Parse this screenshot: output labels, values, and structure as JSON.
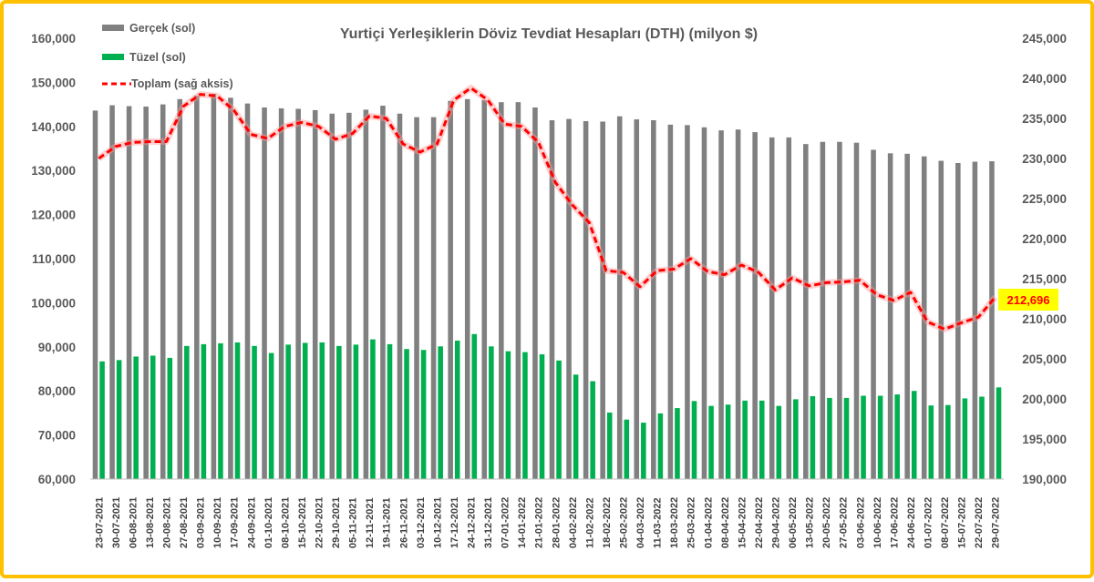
{
  "chart_data": {
    "type": "bar",
    "title": "Yurtiçi Yerleşiklerin Döviz Tevdiat Hesapları (DTH) (milyon $)",
    "categories": [
      "23-07-2021",
      "30-07-2021",
      "06-08-2021",
      "13-08-2021",
      "20-08-2021",
      "27-08-2021",
      "03-09-2021",
      "10-09-2021",
      "17-09-2021",
      "24-09-2021",
      "01-10-2021",
      "08-10-2021",
      "15-10-2021",
      "22-10-2021",
      "29-10-2021",
      "05-11-2021",
      "12-11-2021",
      "19-11-2021",
      "26-11-2021",
      "03-12-2021",
      "10-12-2021",
      "17-12-2021",
      "24-12-2021",
      "31-12-2021",
      "07-01-2022",
      "14-01-2022",
      "21-01-2022",
      "28-01-2022",
      "04-02-2022",
      "11-02-2022",
      "18-02-2022",
      "25-02-2022",
      "04-03-2022",
      "11-03-2022",
      "18-03-2022",
      "25-03-2022",
      "01-04-2022",
      "08-04-2022",
      "15-04-2022",
      "22-04-2022",
      "29-04-2022",
      "06-05-2022",
      "13-05-2022",
      "20-05-2022",
      "27-05-2022",
      "03-06-2022",
      "10-06-2022",
      "17-06-2022",
      "24-06-2022",
      "01-07-2022",
      "08-07-2022",
      "15-07-2022",
      "22-07-2022",
      "29-07-2022"
    ],
    "series": [
      {
        "name": "Gerçek (sol)",
        "axis": "left",
        "color": "#808080",
        "values": [
          143600,
          144800,
          144600,
          144500,
          145000,
          146200,
          147000,
          147400,
          146500,
          145200,
          144300,
          144100,
          144000,
          143700,
          142900,
          143100,
          143800,
          144700,
          142900,
          142100,
          142100,
          145800,
          146200,
          146000,
          145500,
          145500,
          144300,
          141400,
          141700,
          141200,
          141100,
          142300,
          141600,
          141400,
          140400,
          140300,
          139800,
          139100,
          139300,
          138700,
          137500,
          137500,
          136000,
          136500,
          136500,
          136300,
          134700,
          133900,
          133800,
          133200,
          132200,
          131700,
          132000,
          132100
        ]
      },
      {
        "name": "Tüzel (sol)",
        "axis": "left",
        "color": "#00b050",
        "values": [
          86700,
          87000,
          87800,
          88000,
          87500,
          90200,
          90600,
          90800,
          91000,
          90200,
          88600,
          90500,
          90900,
          91000,
          90200,
          90500,
          91700,
          90600,
          89500,
          89300,
          90100,
          91400,
          92900,
          90100,
          89000,
          88800,
          88300,
          86900,
          83700,
          82200,
          75100,
          73500,
          72800,
          74900,
          76100,
          77700,
          76600,
          76900,
          77800,
          77800,
          76600,
          78100,
          78800,
          78400,
          78400,
          78900,
          78900,
          79200,
          80000,
          76700,
          76800,
          78300,
          78700,
          80800
        ]
      },
      {
        "name": "Toplam (sağ aksis)",
        "axis": "right",
        "color": "#ff0000",
        "style": "dashed",
        "values": [
          230000,
          231500,
          232000,
          232100,
          232100,
          236500,
          238000,
          237800,
          236000,
          233000,
          232500,
          234000,
          234500,
          234000,
          232400,
          233100,
          235300,
          235000,
          231800,
          230800,
          231800,
          237300,
          238800,
          237300,
          234300,
          234000,
          232000,
          227000,
          224200,
          222000,
          216000,
          215800,
          214000,
          216000,
          216200,
          217500,
          215900,
          215500,
          216700,
          215800,
          213600,
          215100,
          214100,
          214500,
          214600,
          214800,
          213000,
          212300,
          213300,
          209600,
          208700,
          209500,
          210200,
          212696
        ]
      }
    ],
    "ylim_left": [
      60000,
      160000
    ],
    "ylim_right": [
      190000,
      245000
    ],
    "y_ticks_left": [
      "60,000",
      "70,000",
      "80,000",
      "90,000",
      "100,000",
      "110,000",
      "120,000",
      "130,000",
      "140,000",
      "150,000",
      "160,000"
    ],
    "y_ticks_right": [
      "190,000",
      "195,000",
      "200,000",
      "205,000",
      "210,000",
      "215,000",
      "220,000",
      "225,000",
      "230,000",
      "235,000",
      "240,000",
      "245,000"
    ],
    "legend_placement": "top-left",
    "grid": false,
    "callout": {
      "text": "212,696",
      "value": 212696,
      "background": "#ffff00",
      "color": "#ff0000"
    }
  }
}
